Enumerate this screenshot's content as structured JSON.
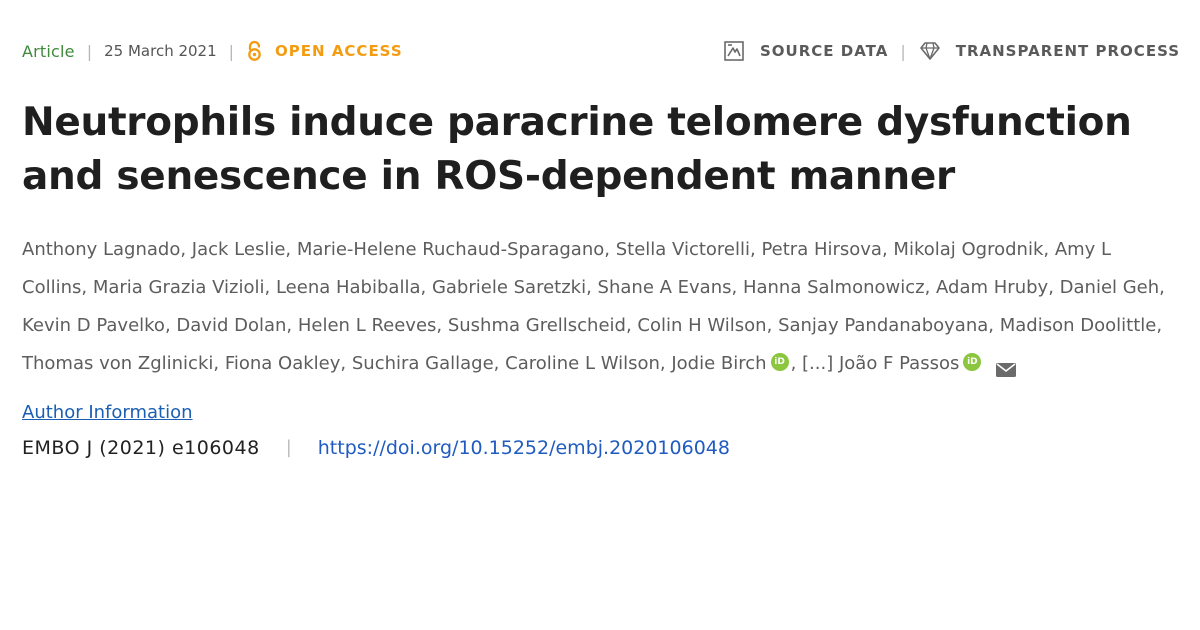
{
  "meta": {
    "article_type": "Article",
    "date": "25 March 2021",
    "open_access_label": "OPEN ACCESS",
    "source_data_label": "SOURCE DATA",
    "transparent_process_label": "TRANSPARENT PROCESS",
    "separator": "|"
  },
  "title": "Neutrophils induce paracrine telomere dysfunction and senescence in ROS-dependent manner",
  "authors": [
    {
      "name": "Anthony Lagnado",
      "orcid": false
    },
    {
      "name": "Jack Leslie",
      "orcid": false
    },
    {
      "name": "Marie-Helene Ruchaud-Sparagano",
      "orcid": false
    },
    {
      "name": "Stella Victorelli",
      "orcid": false
    },
    {
      "name": "Petra Hirsova",
      "orcid": false
    },
    {
      "name": "Mikolaj Ogrodnik",
      "orcid": false
    },
    {
      "name": "Amy L Collins",
      "orcid": false
    },
    {
      "name": "Maria Grazia Vizioli",
      "orcid": false
    },
    {
      "name": "Leena Habiballa",
      "orcid": false
    },
    {
      "name": "Gabriele Saretzki",
      "orcid": false
    },
    {
      "name": "Shane A Evans",
      "orcid": false
    },
    {
      "name": "Hanna Salmonowicz",
      "orcid": false
    },
    {
      "name": "Adam Hruby",
      "orcid": false
    },
    {
      "name": "Daniel Geh",
      "orcid": false
    },
    {
      "name": "Kevin D Pavelko",
      "orcid": false
    },
    {
      "name": "David Dolan",
      "orcid": false
    },
    {
      "name": "Helen L Reeves",
      "orcid": false
    },
    {
      "name": "Sushma Grellscheid",
      "orcid": false
    },
    {
      "name": "Colin H Wilson",
      "orcid": false
    },
    {
      "name": "Sanjay Pandanaboyana",
      "orcid": false
    },
    {
      "name": "Madison Doolittle",
      "orcid": false
    },
    {
      "name": "Thomas von Zglinicki",
      "orcid": false
    },
    {
      "name": "Fiona Oakley",
      "orcid": false
    },
    {
      "name": "Suchira Gallage",
      "orcid": false
    },
    {
      "name": "Caroline L Wilson",
      "orcid": false
    },
    {
      "name": "Jodie Birch",
      "orcid": true
    }
  ],
  "authors_more": "[...]",
  "last_author": {
    "name": "João F Passos",
    "orcid": true
  },
  "orcid_badge_text": "iD",
  "author_information_link": "Author Information",
  "citation": {
    "journal": "EMBO J (2021) e106048",
    "separator": "|",
    "doi": "https://doi.org/10.15252/embj.2020106048"
  },
  "colors": {
    "article_type": "#3f8a3a",
    "open_access": "#f39c12",
    "link": "#1f5bc0",
    "orcid": "#8cc63f"
  },
  "icons": {
    "open_access": "open-access-lock-icon",
    "source_data": "source-data-icon",
    "transparent_process": "diamond-icon",
    "email": "envelope-icon",
    "orcid": "orcid-icon"
  }
}
